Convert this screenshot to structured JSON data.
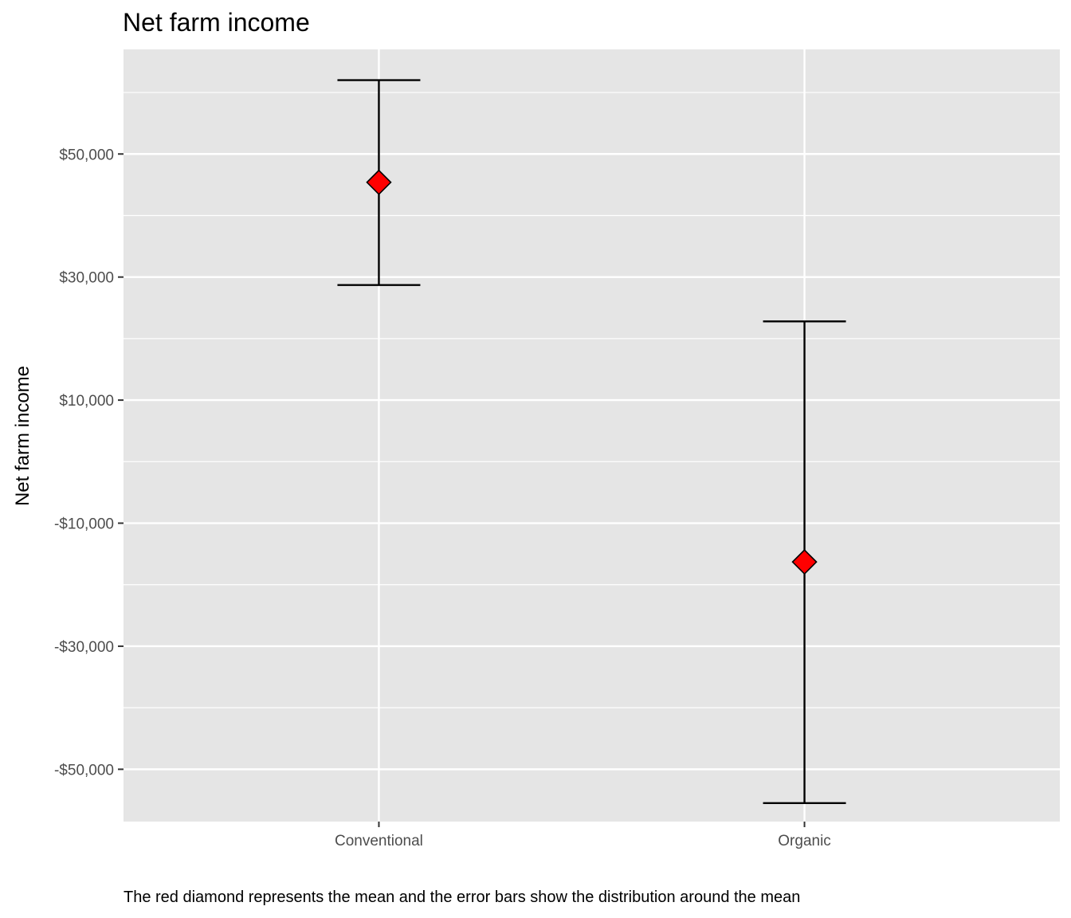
{
  "chart_data": {
    "type": "errorbar",
    "title": "Net farm income",
    "ylabel": "Net farm income",
    "xlabel": "",
    "caption": "The red diamond represents the mean and the error bars show the distribution around the mean",
    "categories": [
      "Conventional",
      "Organic"
    ],
    "points": [
      {
        "category": "Conventional",
        "mean": 45400,
        "low": 28700,
        "high": 62000
      },
      {
        "category": "Organic",
        "mean": -16300,
        "low": -55500,
        "high": 22800
      }
    ],
    "ylim": [
      -58500,
      67000
    ],
    "y_major_ticks": [
      50000,
      30000,
      10000,
      -10000,
      -30000,
      -50000
    ],
    "y_tick_labels": [
      "$50,000",
      "$30,000",
      "$10,000",
      "-$10,000",
      "-$30,000",
      "-$50,000"
    ],
    "y_minor_ticks": [
      60000,
      40000,
      20000,
      0,
      -20000,
      -40000,
      -60000
    ],
    "grid": true,
    "colors": {
      "panel_background": "#e5e5e5",
      "grid": "#ffffff",
      "marker_fill": "#ff0000",
      "marker_stroke": "#000000",
      "errorbar": "#000000"
    }
  }
}
